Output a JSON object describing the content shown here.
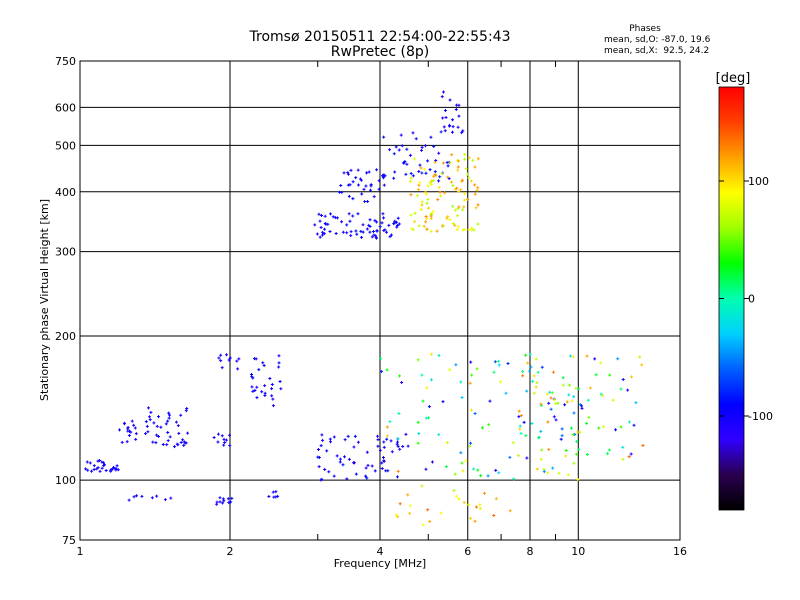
{
  "chart_data": {
    "type": "scatter",
    "title": "Tromsø 20150511 22:54:00-22:55:43",
    "subtitle": "RwPretec (8p)",
    "phases": {
      "heading": "Phases",
      "line_o": "mean, sd,O: -87.0, 19.6",
      "line_x": "mean, sd,X:  92.5, 24.2"
    },
    "xlabel": "Frequency [MHz]",
    "ylabel": "Stationary phase Virtual Height [km]",
    "x_scale": "log",
    "y_scale": "log",
    "xlim": [
      1,
      16
    ],
    "ylim": [
      75,
      750
    ],
    "x_ticks": [
      1,
      2,
      4,
      6,
      8,
      10,
      16
    ],
    "x_tick_labels": [
      "1",
      "2",
      "4",
      "6",
      "8",
      "10",
      "16"
    ],
    "x_minor_ticks": [
      3,
      5,
      7,
      9
    ],
    "y_ticks": [
      75,
      100,
      200,
      300,
      400,
      500,
      600,
      750
    ],
    "y_tick_labels": [
      "75",
      "100",
      "200",
      "300",
      "400",
      "500",
      "600",
      "750"
    ],
    "grid": true,
    "colorbar": {
      "label": "[deg]",
      "range": [
        -180,
        180
      ],
      "ticks": [
        100,
        0,
        -100
      ],
      "tick_labels": [
        "100",
        "0",
        "-100"
      ],
      "colors": [
        "#000000",
        "#2a0050",
        "#3000ff",
        "#0000ff",
        "#0060ff",
        "#00d0ff",
        "#00ffb0",
        "#00ff00",
        "#a0ff00",
        "#ffff00",
        "#ffa000",
        "#ff4000",
        "#ff0000"
      ]
    },
    "clusters": [
      {
        "name": "",
        "count": 18,
        "x": [
          1.0,
          1.13
        ],
        "y": [
          104,
          110
        ],
        "phase": [
          -110,
          -95
        ]
      },
      {
        "name": "",
        "count": 10,
        "x": [
          1.15,
          1.2
        ],
        "y": [
          104,
          108
        ],
        "phase": [
          -110,
          -95
        ]
      },
      {
        "name": "",
        "count": 16,
        "x": [
          1.2,
          1.3
        ],
        "y": [
          119,
          133
        ],
        "phase": [
          -110,
          -95
        ]
      },
      {
        "name": "",
        "count": 42,
        "x": [
          1.35,
          1.65
        ],
        "y": [
          117,
          142
        ],
        "phase": [
          -110,
          -90
        ]
      },
      {
        "name": "",
        "count": 8,
        "x": [
          1.25,
          1.6
        ],
        "y": [
          90,
          93
        ],
        "phase": [
          -110,
          -95
        ]
      },
      {
        "name": "",
        "count": 12,
        "x": [
          1.88,
          2.02
        ],
        "y": [
          89,
          92
        ],
        "phase": [
          -110,
          -95
        ]
      },
      {
        "name": "",
        "count": 10,
        "x": [
          1.85,
          2.1
        ],
        "y": [
          118,
          125
        ],
        "phase": [
          -110,
          -95
        ]
      },
      {
        "name": "",
        "count": 28,
        "x": [
          2.2,
          2.55
        ],
        "y": [
          140,
          182
        ],
        "phase": [
          -110,
          -90
        ]
      },
      {
        "name": "",
        "count": 10,
        "x": [
          1.9,
          2.1
        ],
        "y": [
          170,
          185
        ],
        "phase": [
          -110,
          -95
        ]
      },
      {
        "name": "",
        "count": 6,
        "x": [
          2.3,
          2.5
        ],
        "y": [
          91,
          96
        ],
        "phase": [
          -110,
          -95
        ]
      },
      {
        "name": "",
        "count": 70,
        "x": [
          2.9,
          4.4
        ],
        "y": [
          320,
          360
        ],
        "phase": [
          -110,
          -85
        ]
      },
      {
        "name": "",
        "count": 35,
        "x": [
          3.3,
          4.1
        ],
        "y": [
          380,
          445
        ],
        "phase": [
          -110,
          -85
        ]
      },
      {
        "name": "",
        "count": 45,
        "x": [
          4.0,
          5.6
        ],
        "y": [
          420,
          540
        ],
        "phase": [
          -110,
          -80
        ]
      },
      {
        "name": "",
        "count": 20,
        "x": [
          5.3,
          5.9
        ],
        "y": [
          520,
          650
        ],
        "phase": [
          -110,
          -85
        ]
      },
      {
        "name": "",
        "count": 110,
        "x": [
          4.6,
          6.3
        ],
        "y": [
          330,
          480
        ],
        "phase": [
          60,
          130
        ]
      },
      {
        "name": "",
        "count": 60,
        "x": [
          3.0,
          4.6
        ],
        "y": [
          100,
          125
        ],
        "phase": [
          -110,
          -85
        ]
      },
      {
        "name": "",
        "count": 110,
        "x": [
          4.0,
          10.5
        ],
        "y": [
          100,
          185
        ],
        "phase": [
          -120,
          130
        ]
      },
      {
        "name": "",
        "count": 80,
        "x": [
          7.5,
          13.5
        ],
        "y": [
          110,
          185
        ],
        "phase": [
          -120,
          140
        ]
      },
      {
        "name": "",
        "count": 25,
        "x": [
          4.3,
          7.5
        ],
        "y": [
          80,
          98
        ],
        "phase": [
          60,
          140
        ]
      }
    ]
  }
}
